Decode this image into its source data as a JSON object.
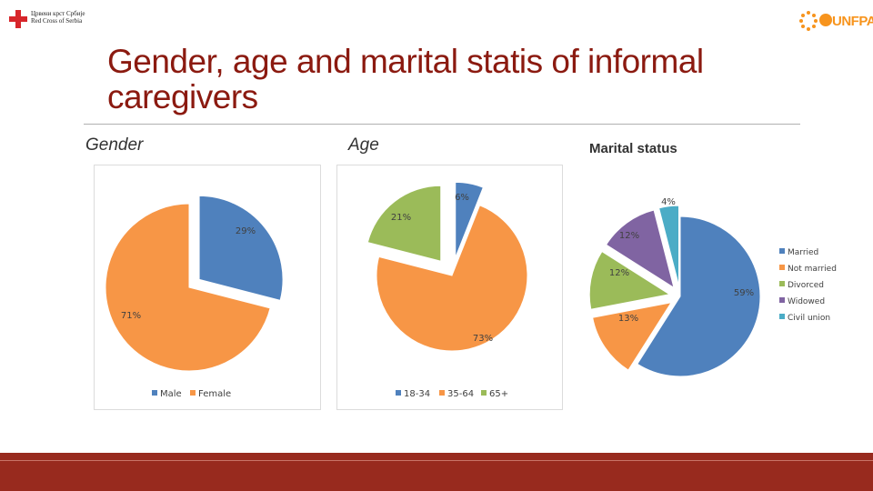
{
  "header": {
    "rc_line1": "Црвени крст Србије",
    "rc_line2": "Red Cross of Serbia",
    "unfpa_text": "UNFPA"
  },
  "title": "Gender, age and marital statis of informal caregivers",
  "sections": {
    "gender": "Gender",
    "age": "Age",
    "marital": "Marital status"
  },
  "chart_data": [
    {
      "type": "pie",
      "title": "Gender",
      "categories": [
        "Male",
        "Female"
      ],
      "values": [
        29,
        71
      ],
      "colors": [
        "#4f81bd",
        "#f79646"
      ],
      "exploded": [
        "Male"
      ],
      "legend_position": "bottom",
      "data_labels": [
        "29%",
        "71%"
      ]
    },
    {
      "type": "pie",
      "title": "Age",
      "categories": [
        "18-34",
        "35-64",
        "65+"
      ],
      "values": [
        6,
        73,
        21
      ],
      "colors": [
        "#4f81bd",
        "#f79646",
        "#9bbb59"
      ],
      "exploded": [
        "18-34",
        "65+"
      ],
      "legend_position": "bottom",
      "data_labels": [
        "6%",
        "73%",
        "21%"
      ]
    },
    {
      "type": "pie",
      "title": "Marital status",
      "categories": [
        "Married",
        "Not married",
        "Divorced",
        "Widowed",
        "Civil union"
      ],
      "values": [
        59,
        13,
        12,
        12,
        4
      ],
      "colors": [
        "#4f81bd",
        "#f79646",
        "#9bbb59",
        "#8064a2",
        "#4bacc6"
      ],
      "exploded": [
        "Not married",
        "Divorced",
        "Widowed",
        "Civil union"
      ],
      "legend_position": "right",
      "data_labels": [
        "59%",
        "13%",
        "12%",
        "12%",
        "4%"
      ]
    }
  ]
}
